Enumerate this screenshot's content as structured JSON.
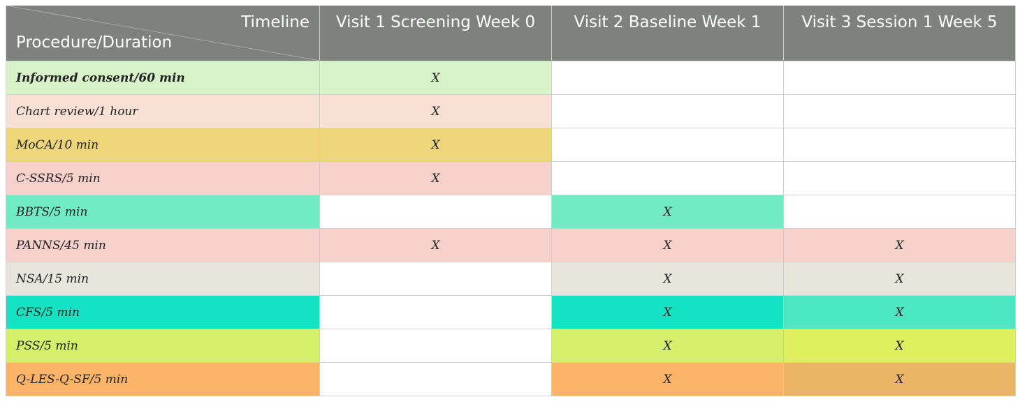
{
  "header": {
    "timeline_label": "Timeline",
    "procedure_label": "Procedure/Duration",
    "visits": [
      "Visit 1 Screening Week 0",
      "Visit 2 Baseline Week 1",
      "Visit 3 Session 1 Week 5"
    ]
  },
  "colors": {
    "header_bg": "#7f817f",
    "header_text": "#ffffff",
    "grid": "#cfcfcf"
  },
  "rows": [
    {
      "label": "Informed consent/60 min",
      "bold": true,
      "marks": [
        "X",
        "",
        ""
      ],
      "colors": [
        "#d8f3c8",
        "#d8f3c8",
        "#ffffff",
        "#ffffff"
      ]
    },
    {
      "label": "Chart review/1 hour",
      "bold": false,
      "marks": [
        "X",
        "",
        ""
      ],
      "colors": [
        "#f9e0d4",
        "#f9e0d4",
        "#ffffff",
        "#ffffff"
      ]
    },
    {
      "label": "MoCA/10 min",
      "bold": false,
      "marks": [
        "X",
        "",
        ""
      ],
      "colors": [
        "#edd57a",
        "#edd57a",
        "#ffffff",
        "#ffffff"
      ]
    },
    {
      "label": "C-SSRS/5 min",
      "bold": false,
      "marks": [
        "X",
        "",
        ""
      ],
      "colors": [
        "#f6d0cb",
        "#f6d0cb",
        "#ffffff",
        "#ffffff"
      ]
    },
    {
      "label": "BBTS/5 min",
      "bold": false,
      "marks": [
        "",
        "X",
        ""
      ],
      "colors": [
        "#71ebc4",
        "#ffffff",
        "#71ebc4",
        "#ffffff"
      ]
    },
    {
      "label": "PANNS/45 min",
      "bold": false,
      "marks": [
        "X",
        "X",
        "X"
      ],
      "colors": [
        "#f6d0cb",
        "#f6d0cb",
        "#f6d0cb",
        "#f6d0cb"
      ]
    },
    {
      "label": "NSA/15 min",
      "bold": false,
      "marks": [
        "",
        "X",
        "X"
      ],
      "colors": [
        "#e8e5dc",
        "#ffffff",
        "#e8e5dc",
        "#e8e5dc"
      ]
    },
    {
      "label": "CFS/5 min",
      "bold": false,
      "marks": [
        "",
        "X",
        "X"
      ],
      "colors": [
        "#13e3c2",
        "#ffffff",
        "#13e3c2",
        "#4de6c2"
      ]
    },
    {
      "label": "PSS/5 min",
      "bold": false,
      "marks": [
        "",
        "X",
        "X"
      ],
      "colors": [
        "#d6ef6a",
        "#ffffff",
        "#d6ef6a",
        "#dfef5e"
      ]
    },
    {
      "label": "Q-LES-Q-SF/5 min",
      "bold": false,
      "marks": [
        "",
        "X",
        "X"
      ],
      "colors": [
        "#feb466",
        "#ffffff",
        "#feb466",
        "#ebb567"
      ]
    }
  ]
}
